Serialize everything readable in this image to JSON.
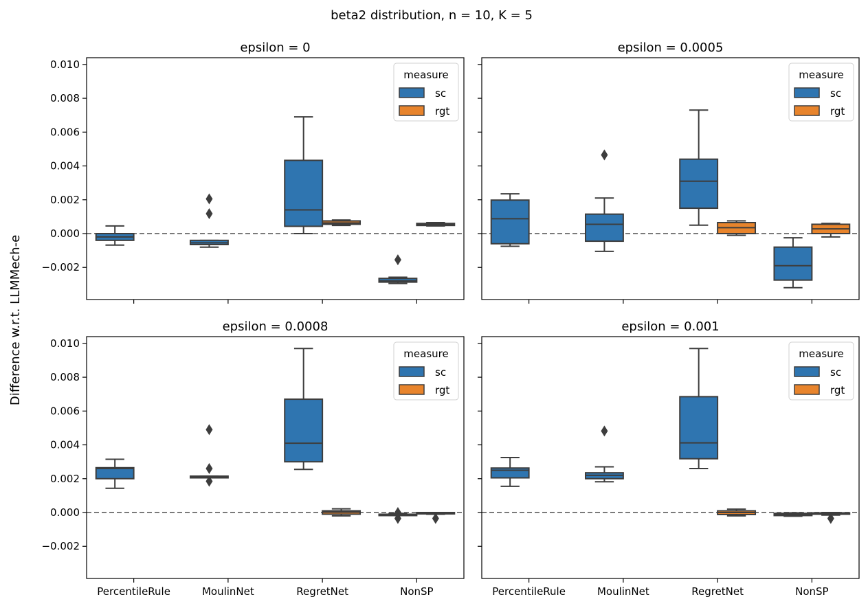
{
  "chart_data": {
    "type": "box",
    "suptitle": "beta2 distribution, n = 10, K = 5",
    "ylabel": "Difference w.r.t. LLMMech-e",
    "categories": [
      "PercentileRule",
      "MoulinNet",
      "RegretNet",
      "NonSP"
    ],
    "ylim": [
      -0.0039,
      0.0104
    ],
    "yticks": [
      -0.002,
      0.0,
      0.002,
      0.004,
      0.006,
      0.008,
      0.01
    ],
    "ytick_labels": [
      "−0.002",
      "0.000",
      "0.002",
      "0.004",
      "0.006",
      "0.008",
      "0.010"
    ],
    "reference_line": 0.0,
    "legend": {
      "title": "measure",
      "position": "upper right"
    },
    "series_style": [
      {
        "name": "sc",
        "color": "#2f75b0"
      },
      {
        "name": "rgt",
        "color": "#e8842c"
      }
    ],
    "panels": [
      {
        "title": "epsilon = 0",
        "boxes": {
          "sc": [
            {
              "category": "PercentileRule",
              "whislo": -0.00068,
              "q1": -0.0004,
              "med": -0.0002,
              "q3": 0.0,
              "whishi": 0.00045,
              "fliers": []
            },
            {
              "category": "MoulinNet",
              "whislo": -0.0008,
              "q1": -0.00065,
              "med": -0.00055,
              "q3": -0.0004,
              "whishi": -0.0004,
              "fliers": [
                0.00205,
                0.00118
              ]
            },
            {
              "category": "RegretNet",
              "whislo": 0.0,
              "q1": 0.00043,
              "med": 0.0014,
              "q3": 0.00433,
              "whishi": 0.0069,
              "fliers": []
            },
            {
              "category": "NonSP",
              "whislo": -0.00295,
              "q1": -0.00287,
              "med": -0.0028,
              "q3": -0.00265,
              "whishi": -0.00258,
              "fliers": [
                -0.00155
              ]
            }
          ],
          "rgt": [
            {
              "category": "PercentileRule",
              "whislo": 0.0,
              "q1": 0.0,
              "med": 0.0,
              "q3": 0.0,
              "whishi": 0.0,
              "fliers": []
            },
            {
              "category": "MoulinNet",
              "whislo": 0.0,
              "q1": 0.0,
              "med": 0.0,
              "q3": 0.0,
              "whishi": 0.0,
              "fliers": []
            },
            {
              "category": "RegretNet",
              "whislo": 0.00048,
              "q1": 0.00055,
              "med": 0.00063,
              "q3": 0.00075,
              "whishi": 0.0008,
              "fliers": []
            },
            {
              "category": "NonSP",
              "whislo": 0.00045,
              "q1": 0.00048,
              "med": 0.00055,
              "q3": 0.0006,
              "whishi": 0.00065,
              "fliers": []
            }
          ]
        }
      },
      {
        "title": "epsilon = 0.0005",
        "boxes": {
          "sc": [
            {
              "category": "PercentileRule",
              "whislo": -0.00075,
              "q1": -0.0006,
              "med": 0.00088,
              "q3": 0.00198,
              "whishi": 0.00235,
              "fliers": []
            },
            {
              "category": "MoulinNet",
              "whislo": -0.00105,
              "q1": -0.00045,
              "med": 0.00055,
              "q3": 0.00115,
              "whishi": 0.0021,
              "fliers": [
                0.00465
              ]
            },
            {
              "category": "RegretNet",
              "whislo": 0.0005,
              "q1": 0.0015,
              "med": 0.0031,
              "q3": 0.0044,
              "whishi": 0.0073,
              "fliers": []
            },
            {
              "category": "NonSP",
              "whislo": -0.0032,
              "q1": -0.00275,
              "med": -0.0019,
              "q3": -0.0008,
              "whishi": -0.00025,
              "fliers": []
            }
          ],
          "rgt": [
            {
              "category": "PercentileRule",
              "whislo": 0.0,
              "q1": 0.0,
              "med": 0.0,
              "q3": 0.0,
              "whishi": 0.0,
              "fliers": []
            },
            {
              "category": "MoulinNet",
              "whislo": 0.0,
              "q1": 0.0,
              "med": 0.0,
              "q3": 0.0,
              "whishi": 0.0,
              "fliers": []
            },
            {
              "category": "RegretNet",
              "whislo": -0.0001,
              "q1": 0.0,
              "med": 0.00035,
              "q3": 0.00065,
              "whishi": 0.00075,
              "fliers": []
            },
            {
              "category": "NonSP",
              "whislo": -0.0002,
              "q1": 0.0,
              "med": 0.00028,
              "q3": 0.00055,
              "whishi": 0.0006,
              "fliers": []
            }
          ]
        }
      },
      {
        "title": "epsilon = 0.0008",
        "boxes": {
          "sc": [
            {
              "category": "PercentileRule",
              "whislo": 0.00143,
              "q1": 0.002,
              "med": 0.0026,
              "q3": 0.00265,
              "whishi": 0.00315,
              "fliers": []
            },
            {
              "category": "MoulinNet",
              "whislo": 0.00205,
              "q1": 0.00205,
              "med": 0.0021,
              "q3": 0.00215,
              "whishi": 0.00215,
              "fliers": [
                0.0049,
                0.0026,
                0.00185
              ]
            },
            {
              "category": "RegretNet",
              "whislo": 0.00255,
              "q1": 0.003,
              "med": 0.0041,
              "q3": 0.0067,
              "whishi": 0.0097,
              "fliers": []
            },
            {
              "category": "NonSP",
              "whislo": -0.00018,
              "q1": -0.00015,
              "med": -0.00012,
              "q3": -0.0001,
              "whishi": -5e-05,
              "fliers": [
                0.0,
                -0.00035
              ]
            }
          ],
          "rgt": [
            {
              "category": "PercentileRule",
              "whislo": 0.0,
              "q1": 0.0,
              "med": 0.0,
              "q3": 0.0,
              "whishi": 0.0,
              "fliers": []
            },
            {
              "category": "MoulinNet",
              "whislo": 0.0,
              "q1": 0.0,
              "med": 0.0,
              "q3": 0.0,
              "whishi": 0.0,
              "fliers": []
            },
            {
              "category": "RegretNet",
              "whislo": -0.0002,
              "q1": -0.0001,
              "med": 2e-05,
              "q3": 0.0001,
              "whishi": 0.00022,
              "fliers": []
            },
            {
              "category": "NonSP",
              "whislo": -0.0001,
              "q1": -8e-05,
              "med": -5e-05,
              "q3": 0.0,
              "whishi": 0.0,
              "fliers": [
                -0.00035
              ]
            }
          ]
        }
      },
      {
        "title": "epsilon = 0.001",
        "boxes": {
          "sc": [
            {
              "category": "PercentileRule",
              "whislo": 0.00155,
              "q1": 0.00205,
              "med": 0.0025,
              "q3": 0.00263,
              "whishi": 0.00325,
              "fliers": []
            },
            {
              "category": "MoulinNet",
              "whislo": 0.00182,
              "q1": 0.002,
              "med": 0.0022,
              "q3": 0.00235,
              "whishi": 0.0027,
              "fliers": [
                0.00482
              ]
            },
            {
              "category": "RegretNet",
              "whislo": 0.0026,
              "q1": 0.00318,
              "med": 0.00412,
              "q3": 0.00685,
              "whishi": 0.0097,
              "fliers": []
            },
            {
              "category": "NonSP",
              "whislo": -0.00022,
              "q1": -0.00018,
              "med": -0.00012,
              "q3": -5e-05,
              "whishi": -2e-05,
              "fliers": []
            }
          ],
          "rgt": [
            {
              "category": "PercentileRule",
              "whislo": 0.0,
              "q1": 0.0,
              "med": 0.0,
              "q3": 0.0,
              "whishi": 0.0,
              "fliers": []
            },
            {
              "category": "MoulinNet",
              "whislo": 0.0,
              "q1": 0.0,
              "med": 0.0,
              "q3": 0.0,
              "whishi": 0.0,
              "fliers": []
            },
            {
              "category": "RegretNet",
              "whislo": -0.0002,
              "q1": -0.00012,
              "med": 0.0,
              "q3": 0.0001,
              "whishi": 0.0002,
              "fliers": []
            },
            {
              "category": "NonSP",
              "whislo": -0.00015,
              "q1": -0.0001,
              "med": -8e-05,
              "q3": -2e-05,
              "whishi": 0.0,
              "fliers": [
                -0.00035
              ]
            }
          ]
        }
      }
    ]
  }
}
